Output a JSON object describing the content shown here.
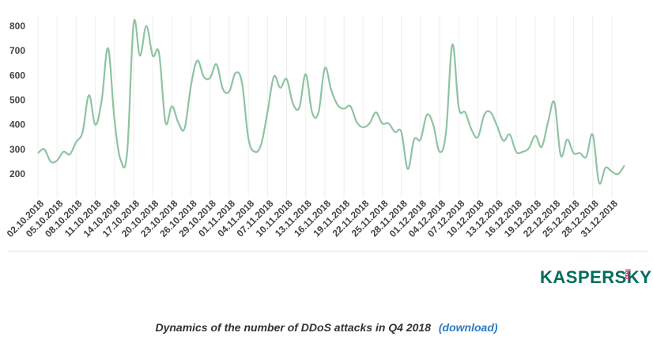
{
  "chart_data": {
    "type": "line",
    "title": "Dynamics of the number of DDoS attacks in Q4 2018",
    "xlabel": "",
    "ylabel": "",
    "ylim": [
      150,
      820
    ],
    "yticks": [
      200,
      300,
      400,
      500,
      600,
      700,
      800
    ],
    "x_tick_labels": [
      "02.10.2018",
      "05.10.2018",
      "08.10.2018",
      "11.10.2018",
      "14.10.2018",
      "17.10.2018",
      "20.10.2018",
      "23.10.2018",
      "26.10.2018",
      "29.10.2018",
      "01.11.2018",
      "04.11.2018",
      "07.11.2018",
      "10.11.2018",
      "13.11.2018",
      "16.11.2018",
      "19.11.2018",
      "22.11.2018",
      "25.11.2018",
      "28.11.2018",
      "01.12.2018",
      "04.12.2018",
      "07.12.2018",
      "10.12.2018",
      "13.12.2018",
      "16.12.2018",
      "19.12.2018",
      "22.12.2018",
      "25.12.2018",
      "28.12.2018",
      "31.12.2018"
    ],
    "series": [
      {
        "name": "DDoS attacks",
        "color": "#8fc3a2",
        "values": [
          285,
          300,
          250,
          255,
          290,
          280,
          330,
          370,
          520,
          400,
          500,
          710,
          420,
          255,
          290,
          810,
          680,
          800,
          680,
          690,
          410,
          475,
          410,
          385,
          560,
          660,
          595,
          590,
          645,
          545,
          535,
          610,
          570,
          345,
          290,
          320,
          450,
          595,
          550,
          585,
          485,
          470,
          605,
          450,
          450,
          630,
          540,
          480,
          465,
          475,
          410,
          390,
          405,
          450,
          405,
          405,
          370,
          370,
          220,
          340,
          340,
          440,
          400,
          290,
          370,
          725,
          470,
          450,
          380,
          350,
          440,
          450,
          395,
          335,
          360,
          290,
          290,
          305,
          355,
          310,
          410,
          490,
          275,
          340,
          285,
          285,
          270,
          360,
          165,
          225,
          210,
          200,
          235
        ]
      }
    ]
  },
  "caption": {
    "text": "Dynamics of the number of DDoS attacks in Q4 2018",
    "download_label": "(download)"
  },
  "logo": {
    "text": "KASPERSKY",
    "sub": "lab"
  }
}
